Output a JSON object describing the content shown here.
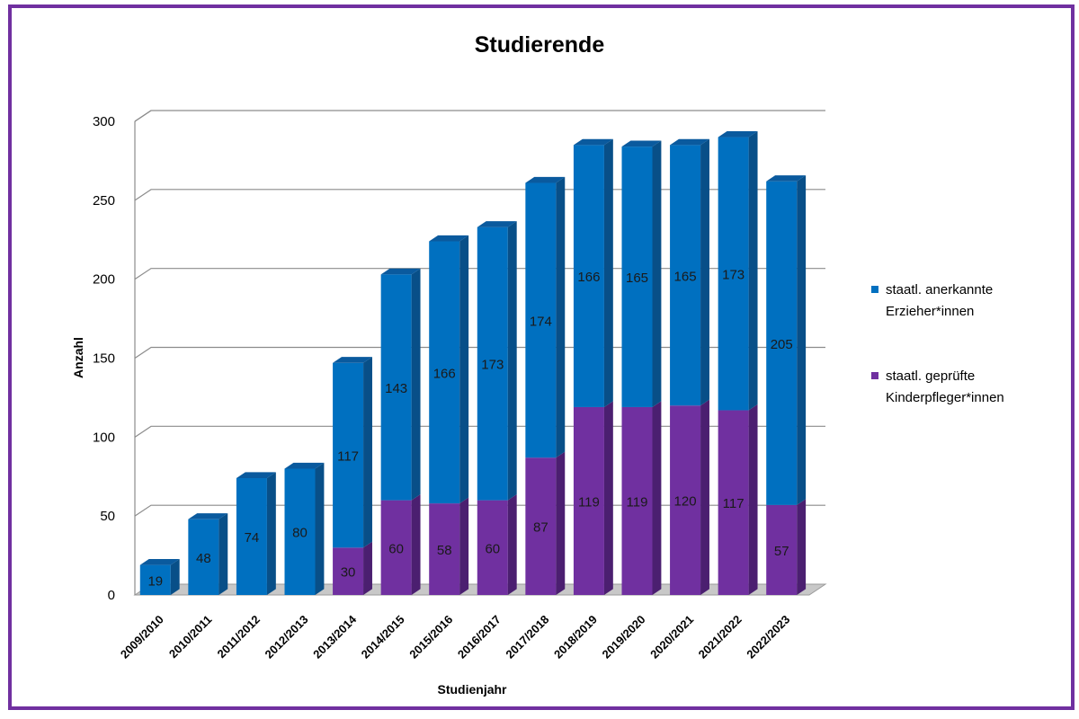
{
  "chart_data": {
    "type": "bar",
    "stacked": true,
    "style": "3d",
    "title": "Studierende",
    "xlabel": "Studienjahr",
    "ylabel": "Anzahl",
    "ylim": [
      0,
      300
    ],
    "yticks": [
      0,
      50,
      100,
      150,
      200,
      250,
      300
    ],
    "grid": true,
    "legend_position": "right",
    "categories": [
      "2009/2010",
      "2010/2011",
      "2011/2012",
      "2012/2013",
      "2013/2014",
      "2014/2015",
      "2015/2016",
      "2016/2017",
      "2017/2018",
      "2018/2019",
      "2019/2020",
      "2020/2021",
      "2021/2022",
      "2022/2023"
    ],
    "series": [
      {
        "name": "staatl. geprüfte Kinderpfleger*innen",
        "color": "#7030a0",
        "values": [
          null,
          null,
          null,
          null,
          30,
          60,
          58,
          60,
          87,
          119,
          119,
          120,
          117,
          57
        ]
      },
      {
        "name": "staatl. anerkannte Erzieher*innen",
        "color": "#0070c0",
        "values": [
          19,
          48,
          74,
          80,
          117,
          143,
          166,
          173,
          174,
          166,
          165,
          165,
          173,
          205
        ]
      }
    ],
    "legend": [
      {
        "line1": "staatl. anerkannte",
        "line2": "Erzieher*innen",
        "color": "#0070c0"
      },
      {
        "line1": "staatl. geprüfte",
        "line2": "Kinderpfleger*innen",
        "color": "#7030a0"
      }
    ]
  },
  "colors": {
    "frame": "#7030a0",
    "blue_front": "#0070c0",
    "blue_top": "#0a5a9e",
    "blue_side": "#084f88",
    "purple_front": "#7030a0",
    "purple_top": "#5a2786",
    "purple_side": "#4b1f70"
  }
}
